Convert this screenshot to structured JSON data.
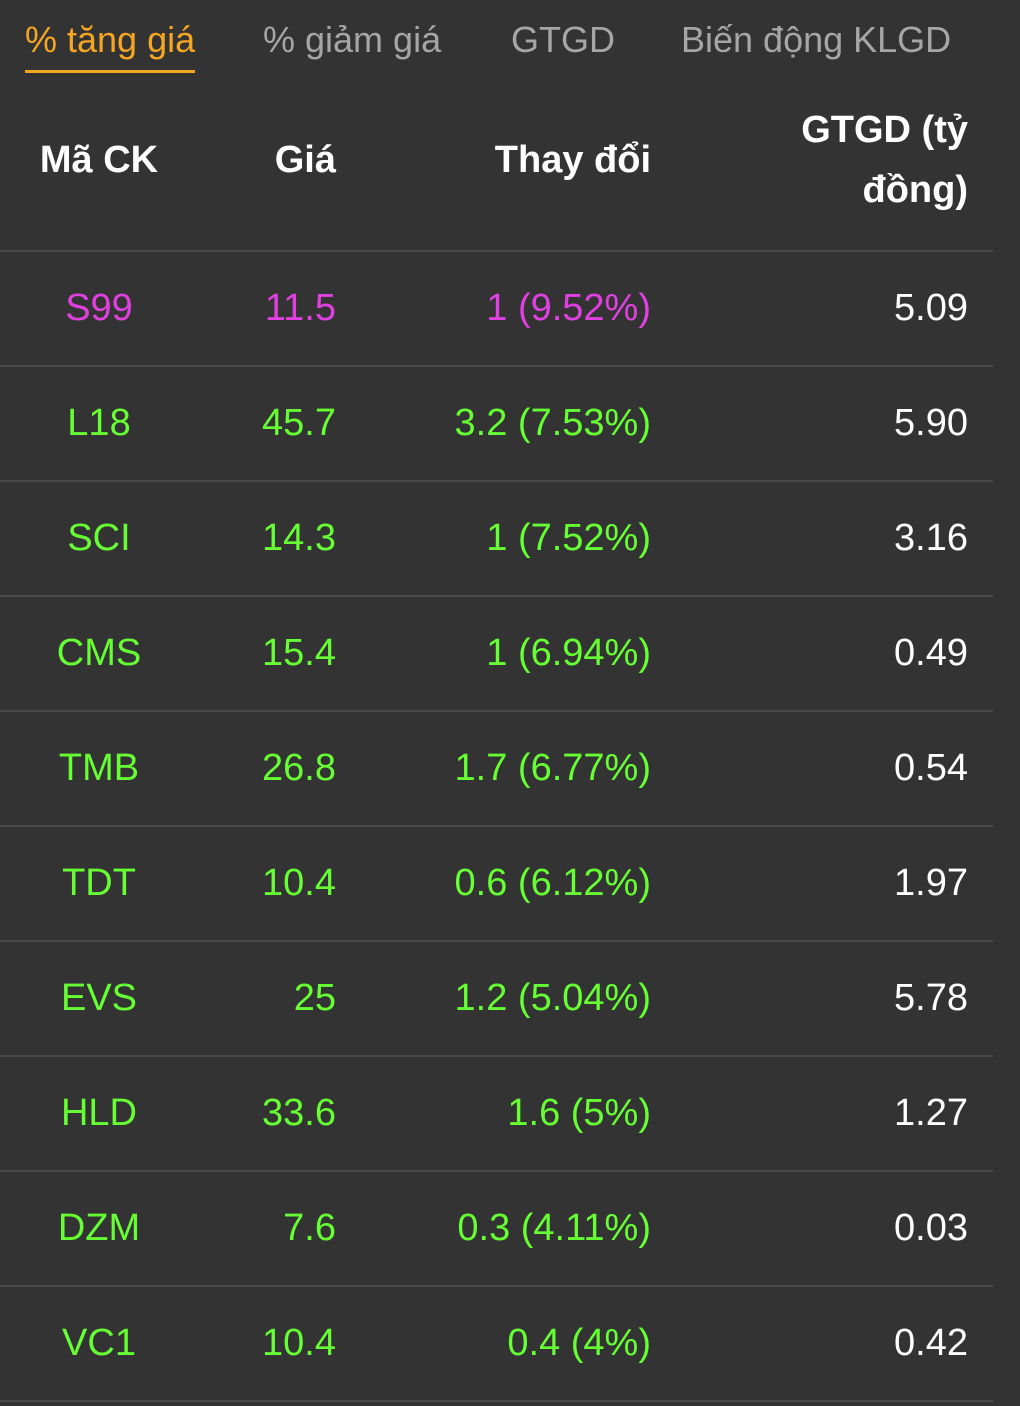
{
  "colors": {
    "background": "#333333",
    "active_tab": "#f5a623",
    "inactive_tab": "#a6a6a6",
    "ceiling": "#e040e0",
    "up": "#66ff33",
    "neutral_value": "#ffffff"
  },
  "tabs": [
    {
      "label": "% tăng giá",
      "active": true
    },
    {
      "label": "% giảm giá",
      "active": false
    },
    {
      "label": "GTGD",
      "active": false
    },
    {
      "label": "Biến động KLGD",
      "active": false
    }
  ],
  "table": {
    "headers": {
      "code": "Mã CK",
      "price": "Giá",
      "change": "Thay đổi",
      "value_line1": "GTGD (tỷ",
      "value_line2": "đồng)"
    },
    "rows": [
      {
        "code": "S99",
        "price": "11.5",
        "change": "1 (9.52%)",
        "value": "5.09",
        "status": "ceiling"
      },
      {
        "code": "L18",
        "price": "45.7",
        "change": "3.2 (7.53%)",
        "value": "5.90",
        "status": "up"
      },
      {
        "code": "SCI",
        "price": "14.3",
        "change": "1 (7.52%)",
        "value": "3.16",
        "status": "up"
      },
      {
        "code": "CMS",
        "price": "15.4",
        "change": "1 (6.94%)",
        "value": "0.49",
        "status": "up"
      },
      {
        "code": "TMB",
        "price": "26.8",
        "change": "1.7 (6.77%)",
        "value": "0.54",
        "status": "up"
      },
      {
        "code": "TDT",
        "price": "10.4",
        "change": "0.6 (6.12%)",
        "value": "1.97",
        "status": "up"
      },
      {
        "code": "EVS",
        "price": "25",
        "change": "1.2 (5.04%)",
        "value": "5.78",
        "status": "up"
      },
      {
        "code": "HLD",
        "price": "33.6",
        "change": "1.6 (5%)",
        "value": "1.27",
        "status": "up"
      },
      {
        "code": "DZM",
        "price": "7.6",
        "change": "0.3 (4.11%)",
        "value": "0.03",
        "status": "up"
      },
      {
        "code": "VC1",
        "price": "10.4",
        "change": "0.4 (4%)",
        "value": "0.42",
        "status": "up"
      }
    ]
  }
}
